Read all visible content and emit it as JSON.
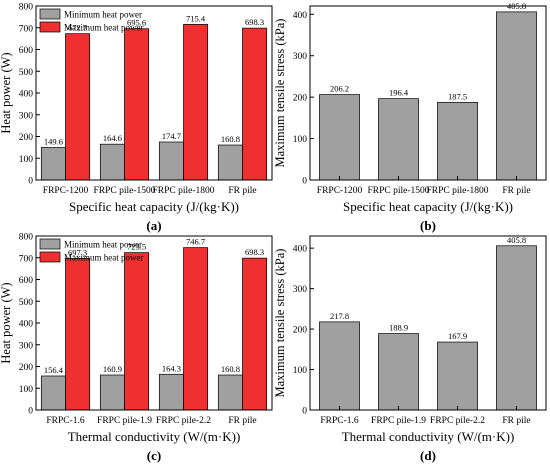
{
  "chart_data": [
    {
      "id": "a",
      "type": "bar",
      "panel_label": "(a)",
      "xlabel": "Specific heat capacity (J/(kg·K))",
      "ylabel": "Heat power (W)",
      "ylim": [
        0,
        800
      ],
      "yticks": [
        0,
        100,
        200,
        300,
        400,
        500,
        600,
        700,
        800
      ],
      "categories": [
        "FRPC-1200",
        "FRPC pile-1500",
        "FRPC pile-1800",
        "FR pile"
      ],
      "series": [
        {
          "name": "Minimum heat power",
          "color": "#a0a0a0",
          "values": [
            149.6,
            164.6,
            174.7,
            160.8
          ],
          "labels": [
            "149.6",
            "164.6",
            "174.7",
            "160.8"
          ]
        },
        {
          "name": "Maximum heat power",
          "color": "#f03030",
          "values": [
            672.7,
            695.6,
            715.4,
            698.3
          ],
          "labels": [
            "672.7",
            "695.6",
            "715.4",
            "698.3"
          ]
        }
      ],
      "legend_position": "top-left"
    },
    {
      "id": "b",
      "type": "bar",
      "panel_label": "(b)",
      "xlabel": "Specific heat capacity (J/(kg·K))",
      "ylabel": "Maximum tensile stress (kPa)",
      "ylim": [
        0,
        420
      ],
      "yticks": [
        0,
        100,
        200,
        300,
        400
      ],
      "categories": [
        "FRPC-1200",
        "FRPC pile-1500",
        "FRPC pile-1800",
        "FR pile"
      ],
      "series": [
        {
          "color": "#a0a0a0",
          "values": [
            206.2,
            196.4,
            187.5,
            405.8
          ],
          "labels": [
            "206.2",
            "196.4",
            "187.5",
            "405.8"
          ]
        }
      ]
    },
    {
      "id": "c",
      "type": "bar",
      "panel_label": "(c)",
      "xlabel": "Thermal conductivity (W/(m·K))",
      "ylabel": "Heat power (W)",
      "ylim": [
        0,
        800
      ],
      "yticks": [
        0,
        100,
        200,
        300,
        400,
        500,
        600,
        700,
        800
      ],
      "categories": [
        "FRPC-1.6",
        "FRPC pile-1.9",
        "FRPC pile-2.2",
        "FR pile"
      ],
      "series": [
        {
          "name": "Minimum heat power",
          "color": "#a0a0a0",
          "values": [
            156.4,
            160.9,
            164.3,
            160.8
          ],
          "labels": [
            "156.4",
            "160.9",
            "164.3",
            "160.8"
          ]
        },
        {
          "name": "Maximum heat power",
          "color": "#f03030",
          "values": [
            697.3,
            723.5,
            746.7,
            698.3
          ],
          "labels": [
            "697.3",
            "723.5",
            "746.7",
            "698.3"
          ]
        }
      ],
      "legend_position": "top-left"
    },
    {
      "id": "d",
      "type": "bar",
      "panel_label": "(d)",
      "xlabel": "Thermal conductivity (W/(m·K))",
      "ylabel": "Maximum tensile stress (kPa)",
      "ylim": [
        0,
        430
      ],
      "yticks": [
        0,
        100,
        200,
        300,
        400
      ],
      "categories": [
        "FRPC-1.6",
        "FRPC pile-1.9",
        "FRPC pile-2.2",
        "FR pile"
      ],
      "series": [
        {
          "color": "#a0a0a0",
          "values": [
            217.8,
            188.9,
            167.9,
            405.8
          ],
          "labels": [
            "217.8",
            "188.9",
            "167.9",
            "405.8"
          ]
        }
      ]
    }
  ]
}
